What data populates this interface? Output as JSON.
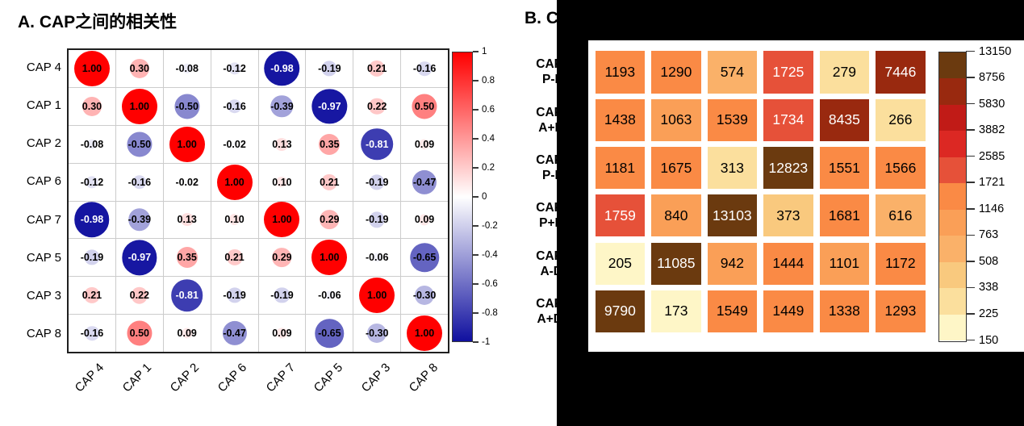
{
  "chart_data": [
    {
      "id": "panel-a",
      "type": "heatmap",
      "subtype": "correlogram-circles",
      "title": "A. CAP之间的相关性",
      "categories": [
        "CAP 4",
        "CAP 1",
        "CAP 2",
        "CAP 6",
        "CAP 7",
        "CAP 5",
        "CAP 3",
        "CAP 8"
      ],
      "matrix": [
        [
          1.0,
          0.3,
          -0.08,
          -0.12,
          -0.98,
          -0.19,
          0.21,
          -0.16
        ],
        [
          0.3,
          1.0,
          -0.5,
          -0.16,
          -0.39,
          -0.97,
          0.22,
          0.5
        ],
        [
          -0.08,
          -0.5,
          1.0,
          -0.02,
          0.13,
          0.35,
          -0.81,
          0.09
        ],
        [
          -0.12,
          -0.16,
          -0.02,
          1.0,
          0.1,
          0.21,
          -0.19,
          -0.47
        ],
        [
          -0.98,
          -0.39,
          0.13,
          0.1,
          1.0,
          0.29,
          -0.19,
          0.09
        ],
        [
          -0.19,
          -0.97,
          0.35,
          0.21,
          0.29,
          1.0,
          -0.06,
          -0.65
        ],
        [
          0.21,
          0.22,
          -0.81,
          -0.19,
          -0.19,
          -0.06,
          1.0,
          -0.3
        ],
        [
          -0.16,
          0.5,
          0.09,
          -0.47,
          0.09,
          -0.65,
          -0.3,
          1.0
        ]
      ],
      "value_range": [
        -1,
        1
      ],
      "legend_position": "right",
      "colorbar_ticks": [
        "1",
        "0.8",
        "0.6",
        "0.4",
        "0.2",
        "0",
        "-0.2",
        "-0.4",
        "-0.6",
        "-0.8",
        "-1"
      ],
      "pos_color": "#FF0000",
      "neg_color": "#10109F",
      "mid_color": "#FFFFFF",
      "white_text_max": -0.8,
      "circle_scale": "radius proportional to sqrt(abs(r))"
    },
    {
      "id": "panel-b",
      "type": "heatmap",
      "title_visible": "B. C",
      "row_label_fragments": [
        {
          "line1": "CAP",
          "line2": "P-F"
        },
        {
          "line1": "CAP",
          "line2": "A+F"
        },
        {
          "line1": "CAP",
          "line2": "P-F"
        },
        {
          "line1": "CAP",
          "line2": "P+F"
        },
        {
          "line1": "CAP",
          "line2": "A-D"
        },
        {
          "line1": "CAP",
          "line2": "A+D"
        }
      ],
      "values": [
        [
          1193,
          1290,
          574,
          1725,
          279,
          7446
        ],
        [
          1438,
          1063,
          1539,
          1734,
          8435,
          266
        ],
        [
          1181,
          1675,
          313,
          12823,
          1551,
          1566
        ],
        [
          1759,
          840,
          13103,
          373,
          1681,
          616
        ],
        [
          205,
          11085,
          942,
          1444,
          1101,
          1172
        ],
        [
          9790,
          173,
          1549,
          1449,
          1338,
          1293
        ]
      ],
      "breaks": [
        150,
        225,
        338,
        508,
        763,
        1146,
        1721,
        2585,
        3882,
        5830,
        8756,
        13150
      ],
      "palette_low_to_high": [
        "#FEF6C7",
        "#FBDF9D",
        "#F9C97E",
        "#FAB169",
        "#FA9F57",
        "#FA8A45",
        "#E65139",
        "#DC2823",
        "#C11B17",
        "#99290F",
        "#6B3A0F"
      ],
      "colorbar_ticks": [
        "13150",
        "8756",
        "5830",
        "3882",
        "2585",
        "1721",
        "1146",
        "763",
        "508",
        "338",
        "225",
        "150"
      ],
      "legend_position": "right",
      "white_text_min": 1721
    }
  ]
}
